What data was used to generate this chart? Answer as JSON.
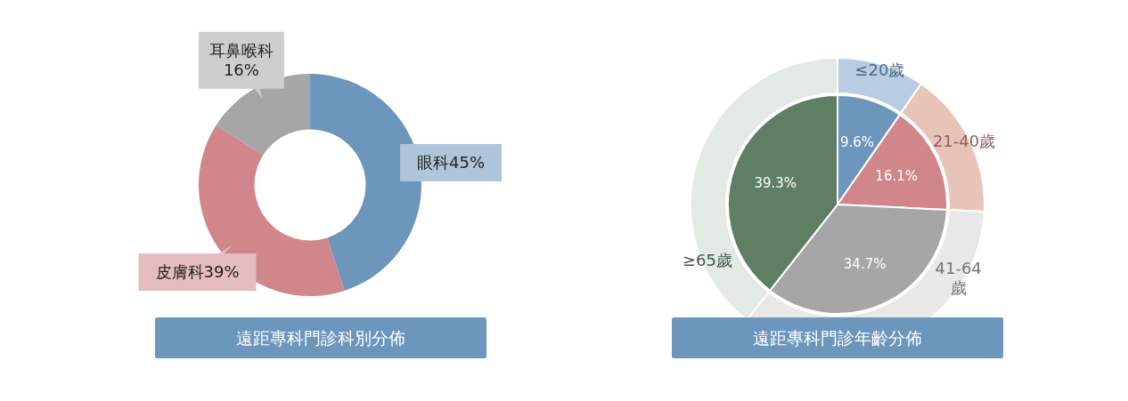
{
  "chart_data": [
    {
      "type": "donut",
      "title": "遠距專科門診科別分佈",
      "categories": [
        "眼科",
        "皮膚科",
        "耳鼻喉科"
      ],
      "values": [
        45,
        39,
        16
      ],
      "colors": [
        "#6d96bd",
        "#d0868a",
        "#a6a6a6"
      ],
      "value_labels": [
        "45%",
        "39%",
        "16%"
      ]
    },
    {
      "type": "donut",
      "title": "遠距專科門診年齡分佈",
      "categories": [
        "≤20歲",
        "21-40歲",
        "41-64歲",
        "≥65歲"
      ],
      "series": [
        {
          "values": [
            9.6,
            16.1,
            34.7,
            39.3
          ],
          "colors": [
            "#b8cde4",
            "#e8c4b8",
            "#e8e8e8",
            "#e3e9e3"
          ]
        },
        {
          "values": [
            9.6,
            16.1,
            34.7,
            39.3
          ],
          "colors": [
            "#6d96bd",
            "#d0868a",
            "#a6a6a6",
            "#5f7f64"
          ],
          "value_labels": [
            "9.6%",
            "16.1%",
            "34.7%",
            "39.3%"
          ]
        }
      ]
    }
  ]
}
